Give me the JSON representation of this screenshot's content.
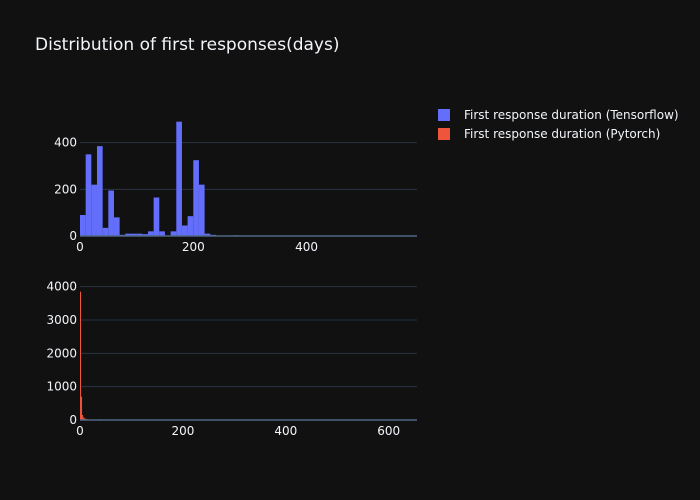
{
  "chart_data": {
    "type": "bar",
    "title": "Distribution of first responses(days)",
    "legend": {
      "placement": "top-right",
      "entries": [
        {
          "name": "First response duration (Tensorflow)",
          "color": "#636efa"
        },
        {
          "name": "First response duration (Pytorch)",
          "color": "#ef553b"
        }
      ]
    },
    "grid": true,
    "subplots": [
      {
        "series_name": "First response duration (Tensorflow)",
        "color": "#636efa",
        "bin_width": 10,
        "bins": [
          [
            0,
            90
          ],
          [
            10,
            350
          ],
          [
            20,
            220
          ],
          [
            30,
            385
          ],
          [
            40,
            35
          ],
          [
            50,
            195
          ],
          [
            60,
            80
          ],
          [
            70,
            5
          ],
          [
            80,
            10
          ],
          [
            90,
            10
          ],
          [
            100,
            10
          ],
          [
            110,
            8
          ],
          [
            120,
            20
          ],
          [
            130,
            165
          ],
          [
            140,
            20
          ],
          [
            150,
            2
          ],
          [
            160,
            20
          ],
          [
            170,
            490
          ],
          [
            180,
            45
          ],
          [
            190,
            85
          ],
          [
            200,
            325
          ],
          [
            210,
            220
          ],
          [
            220,
            10
          ],
          [
            230,
            5
          ],
          [
            240,
            2
          ],
          [
            250,
            1
          ],
          [
            260,
            1
          ],
          [
            270,
            3
          ]
        ],
        "xlim": [
          0,
          595
        ],
        "ylim": [
          0,
          600
        ],
        "xticks": [
          0,
          200,
          400
        ],
        "yticks": [
          0,
          200,
          400
        ]
      },
      {
        "series_name": "First response duration (Pytorch)",
        "color": "#ef553b",
        "bin_width": 2,
        "bins": [
          [
            0,
            3850
          ],
          [
            2,
            700
          ],
          [
            4,
            150
          ],
          [
            6,
            80
          ],
          [
            8,
            50
          ],
          [
            10,
            40
          ],
          [
            12,
            30
          ],
          [
            14,
            20
          ],
          [
            16,
            15
          ],
          [
            18,
            12
          ],
          [
            20,
            10
          ],
          [
            22,
            8
          ],
          [
            24,
            6
          ],
          [
            26,
            5
          ],
          [
            28,
            4
          ],
          [
            30,
            4
          ],
          [
            32,
            3
          ],
          [
            34,
            3
          ],
          [
            36,
            25
          ],
          [
            38,
            10
          ],
          [
            40,
            5
          ],
          [
            42,
            3
          ],
          [
            44,
            2
          ],
          [
            46,
            2
          ],
          [
            48,
            2
          ],
          [
            50,
            2
          ],
          [
            60,
            2
          ],
          [
            80,
            6
          ],
          [
            100,
            2
          ],
          [
            140,
            1
          ],
          [
            200,
            1
          ],
          [
            300,
            1
          ],
          [
            400,
            1
          ],
          [
            600,
            1
          ]
        ],
        "xlim": [
          0,
          655
        ],
        "ylim": [
          0,
          4050
        ],
        "xticks": [
          0,
          200,
          400,
          600
        ],
        "yticks": [
          0,
          1000,
          2000,
          3000,
          4000
        ]
      }
    ]
  }
}
